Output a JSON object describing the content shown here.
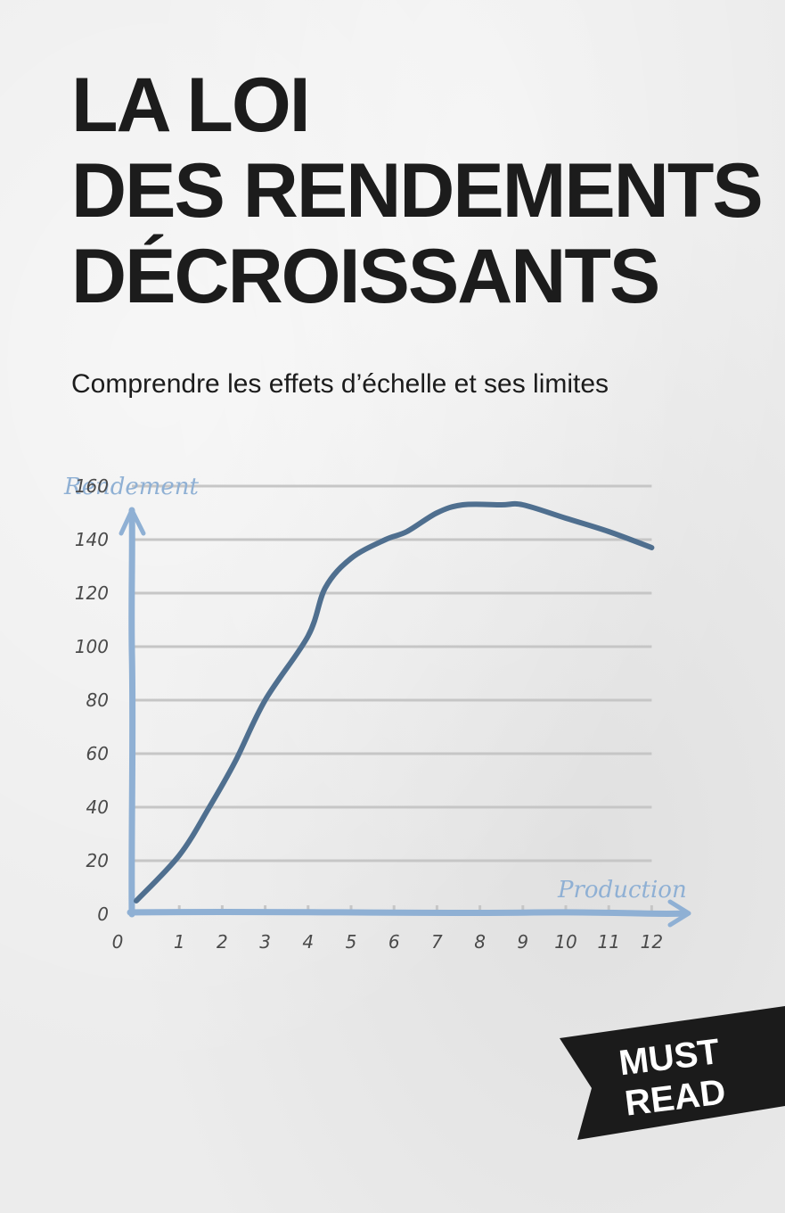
{
  "cover": {
    "title_lines": [
      "LA LOI",
      "DES RENDEMENTS",
      "DÉCROISSANTS"
    ],
    "subtitle": "Comprendre les effets d’échelle et ses limites",
    "badge_lines": [
      "MUST",
      "READ"
    ]
  },
  "colors": {
    "axis": "#8fb0d4",
    "line": "#4f6f8f",
    "grid": "#c6c6c6",
    "badge": "#1b1b1b",
    "title": "#1c1c1c"
  },
  "chart_data": {
    "type": "line",
    "xlabel": "Production",
    "ylabel": "Rendement",
    "x_ticks": [
      "0",
      "1",
      "2",
      "3",
      "4",
      "5",
      "6",
      "7",
      "8",
      "9",
      "10",
      "11",
      "12"
    ],
    "y_ticks": [
      "0",
      "20",
      "40",
      "60",
      "80",
      "100",
      "120",
      "140",
      "160"
    ],
    "xlim": [
      0,
      12
    ],
    "ylim": [
      0,
      160
    ],
    "grid": true,
    "series": [
      {
        "x": [
          0,
          1,
          1.7,
          2.3,
          3,
          4,
          4.4,
          5,
          5.8,
          6.3,
          7,
          7.6,
          8.5,
          9,
          10,
          11,
          12
        ],
        "y": [
          5,
          22,
          40,
          57,
          80,
          104,
          122,
          133,
          140,
          143,
          150,
          153,
          153,
          153,
          148,
          143,
          137
        ]
      }
    ]
  }
}
